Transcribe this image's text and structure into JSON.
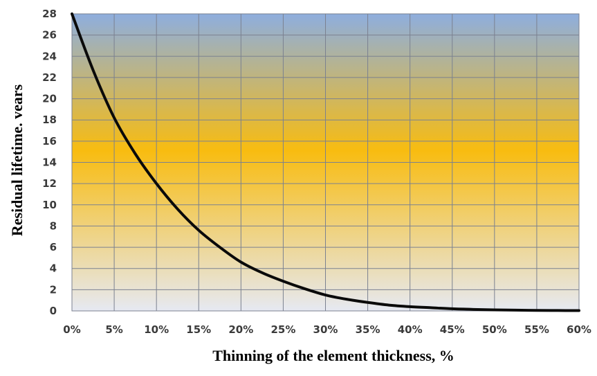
{
  "chart_data": {
    "type": "line",
    "title": "",
    "xlabel": "Thinning of the element thickness, %",
    "ylabel": "Residual lifetime. vears",
    "xlim": [
      0,
      60
    ],
    "ylim": [
      0,
      28
    ],
    "x_ticks": [
      0,
      5,
      10,
      15,
      20,
      25,
      30,
      35,
      40,
      45,
      50,
      55,
      60
    ],
    "x_tick_labels": [
      "0%",
      "5%",
      "10%",
      "15%",
      "20%",
      "25%",
      "30%",
      "35%",
      "40%",
      "45%",
      "50%",
      "55%",
      "60%"
    ],
    "y_ticks": [
      0,
      2,
      4,
      6,
      8,
      10,
      12,
      14,
      16,
      18,
      20,
      22,
      24,
      26,
      28
    ],
    "y_tick_labels": [
      "0",
      "2",
      "4",
      "6",
      "8",
      "10",
      "12",
      "14",
      "16",
      "18",
      "20",
      "22",
      "24",
      "26",
      "28"
    ],
    "grid": true,
    "legend": "none",
    "series": [
      {
        "color": "#0a0a0a",
        "x": [
          0,
          2.5,
          5,
          7.5,
          10,
          12.5,
          15,
          17.5,
          20,
          22.5,
          25,
          27.5,
          30,
          32.5,
          35,
          37.5,
          40,
          42.5,
          45,
          47.5,
          50,
          52.5,
          55,
          57.5,
          60
        ],
        "y": [
          28,
          22.7,
          18.2,
          14.8,
          12.0,
          9.6,
          7.6,
          6.0,
          4.6,
          3.6,
          2.8,
          2.1,
          1.5,
          1.1,
          0.8,
          0.55,
          0.4,
          0.3,
          0.2,
          0.14,
          0.1,
          0.07,
          0.05,
          0.04,
          0.03
        ]
      }
    ],
    "background_gradient": [
      "#8eaede",
      "#f8bc10",
      "#e6e9f2"
    ],
    "grid_color": "#7b8190"
  }
}
